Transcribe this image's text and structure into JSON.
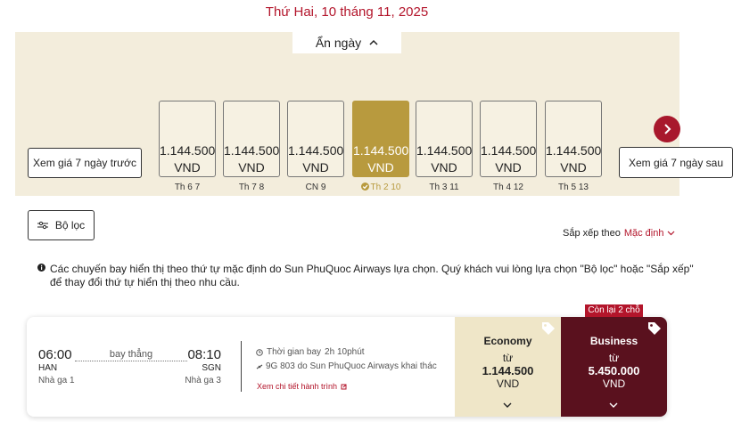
{
  "date_header": "Thứ Hai, 10 tháng 11, 2025",
  "toggle": "Ẩn ngày",
  "prev_button": "Xem giá 7 ngày trước",
  "next_button": "Xem giá 7 ngày sau",
  "days": [
    {
      "price": "1.144.500",
      "currency": "VND",
      "label": "Th 6 7"
    },
    {
      "price": "1.144.500",
      "currency": "VND",
      "label": "Th 7 8"
    },
    {
      "price": "1.144.500",
      "currency": "VND",
      "label": "CN 9"
    },
    {
      "price": "1.144.500",
      "currency": "VND",
      "label": "Th 2 10",
      "selected": true
    },
    {
      "price": "1.144.500",
      "currency": "VND",
      "label": "Th 3 11"
    },
    {
      "price": "1.144.500",
      "currency": "VND",
      "label": "Th 4 12"
    },
    {
      "price": "1.144.500",
      "currency": "VND",
      "label": "Th 5 13"
    }
  ],
  "filter_button": "Bộ lọc",
  "sort": {
    "label": "Sắp xếp theo",
    "value": "Mặc định"
  },
  "notice": [
    "Các chuyến bay hiển thị theo thứ tự mặc định do Sun PhuQuoc Airways lựa chọn. Quý khách vui lòng lựa chọn \"Bộ lọc\" hoặc \"Sắp xếp\"",
    "để thay đổi thứ tự hiển thị theo nhu cầu."
  ],
  "flight": {
    "departure": {
      "time": "06:00",
      "airport": "HAN",
      "terminal": "Nhà ga 1"
    },
    "arrival": {
      "time": "08:10",
      "airport": "SGN",
      "terminal": "Nhà ga 3"
    },
    "stops": "bay thẳng",
    "duration_label": "Thời gian bay",
    "duration": "2h 10phút",
    "operator": "9G 803 do Sun PhuQuoc Airways khai thác",
    "details_link": "Xem chi tiết hành trình",
    "fares": [
      {
        "class": "Economy",
        "from": "từ",
        "price": "1.144.500",
        "currency": "VND"
      },
      {
        "class": "Business",
        "from": "từ",
        "price": "5.450.000",
        "currency": "VND",
        "badge": "Còn lại 2 chỗ"
      }
    ]
  }
}
